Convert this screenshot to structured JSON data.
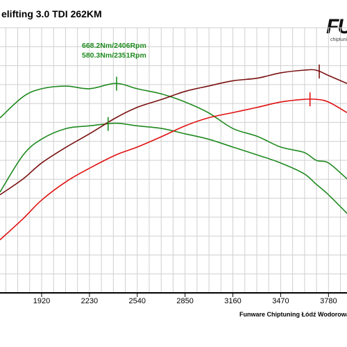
{
  "title": "elifting 3.0 TDI 262KM",
  "logo": {
    "text": "FU",
    "sub": "chiptuning"
  },
  "footer": "Funware Chiptuning Łódź Wodorowa",
  "annotations": {
    "tuned_torque": "668.2Nm/2406Rpm",
    "stock_torque": "580.3Nm/2351Rpm"
  },
  "colors": {
    "tuned_torque": "#1f8a1f",
    "stock_torque": "#1f8a1f",
    "tuned_power": "#7a1010",
    "stock_power": "#e01010",
    "grid": "#cfcfcf"
  },
  "chart_data": {
    "type": "line",
    "title": "elifting 3.0 TDI 262KM",
    "xlabel": "",
    "ylabel": "",
    "xlim": [
      1650,
      3900
    ],
    "ylim": [
      0,
      1
    ],
    "grid": true,
    "x_ticks": [
      1920,
      2230,
      2540,
      2850,
      3160,
      3470,
      3780
    ],
    "x": [
      1650,
      1800,
      1920,
      2080,
      2230,
      2400,
      2540,
      2700,
      2850,
      3000,
      3160,
      3320,
      3470,
      3620,
      3700,
      3780,
      3900
    ],
    "series": [
      {
        "key": "tuned_torque",
        "values": [
          0.66,
          0.74,
          0.77,
          0.78,
          0.77,
          0.79,
          0.77,
          0.75,
          0.72,
          0.68,
          0.62,
          0.59,
          0.55,
          0.53,
          0.5,
          0.49,
          0.43
        ],
        "marker_x": 2406
      },
      {
        "key": "stock_torque",
        "values": [
          0.38,
          0.52,
          0.58,
          0.62,
          0.63,
          0.64,
          0.63,
          0.62,
          0.6,
          0.58,
          0.55,
          0.52,
          0.49,
          0.45,
          0.41,
          0.37,
          0.3
        ],
        "marker_x": 2351
      },
      {
        "key": "tuned_power",
        "values": [
          0.37,
          0.43,
          0.49,
          0.55,
          0.6,
          0.66,
          0.7,
          0.73,
          0.76,
          0.78,
          0.8,
          0.81,
          0.83,
          0.84,
          0.84,
          0.82,
          0.79
        ],
        "marker_x": 3720
      },
      {
        "key": "stock_power",
        "values": [
          0.2,
          0.28,
          0.35,
          0.42,
          0.47,
          0.52,
          0.55,
          0.59,
          0.63,
          0.66,
          0.68,
          0.7,
          0.72,
          0.73,
          0.73,
          0.72,
          0.68
        ],
        "marker_x": 3660
      }
    ]
  }
}
